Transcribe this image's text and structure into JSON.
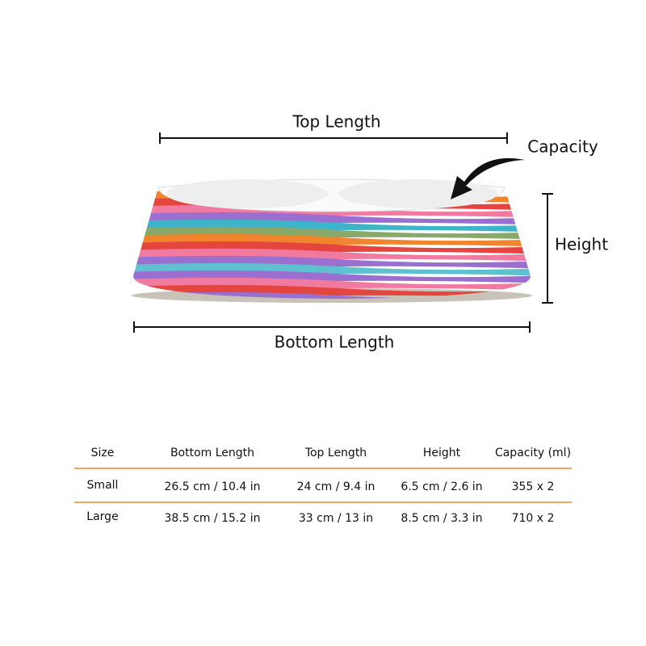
{
  "diagram": {
    "labels": {
      "top_length": "Top Length",
      "capacity": "Capacity",
      "height": "Height",
      "bottom_length": "Bottom Length"
    }
  },
  "table": {
    "header": [
      "Size",
      "Bottom Length",
      "Top Length",
      "Height",
      "Capacity (ml)"
    ],
    "rows": [
      [
        "Small",
        "26.5 cm / 10.4 in",
        "24 cm / 9.4 in",
        "6.5 cm / 2.6 in",
        "355 x 2"
      ],
      [
        "Large",
        "38.5 cm / 15.2 in",
        "33 cm / 13 in",
        "8.5 cm / 3.3 in",
        "710 x 2"
      ]
    ]
  }
}
